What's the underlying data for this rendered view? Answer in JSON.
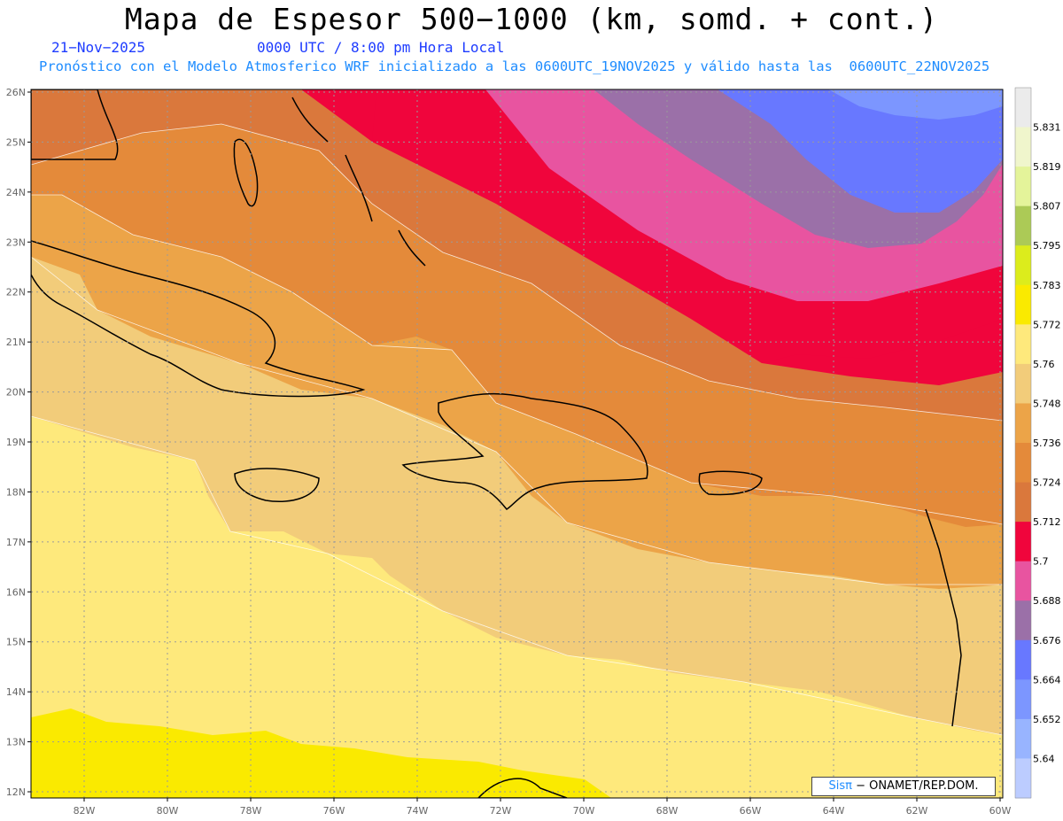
{
  "header": {
    "title": "Mapa de Espesor 500−1000 (km, somd. + cont.)",
    "date": "21−Nov−2025",
    "time": "0000 UTC / 8:00 pm Hora Local",
    "forecast": "Pronóstico con el Modelo Atmosferico WRF inicializado a las 0600UTC_19NOV2025 y válido hasta las  0600UTC_22NOV2025"
  },
  "map": {
    "lat_labels": [
      "26N",
      "25N",
      "24N",
      "23N",
      "22N",
      "21N",
      "20N",
      "19N",
      "18N",
      "17N",
      "16N",
      "15N",
      "14N",
      "13N",
      "12N"
    ],
    "lon_labels": [
      "82W",
      "80W",
      "78W",
      "76W",
      "74W",
      "72W",
      "70W",
      "68W",
      "66W",
      "64W",
      "62W",
      "60W"
    ],
    "colors": {
      "c5640": "#bcccff",
      "c5652": "#98b4ff",
      "c5664": "#7c96ff",
      "c5676": "#6878ff",
      "c5688": "#9b70a8",
      "c5700": "#e854a0",
      "c5712": "#f0053c",
      "c5724": "#da783c",
      "c5736": "#e48a3a",
      "c5748": "#eca448",
      "c5760": "#f2cc7a",
      "c5772": "#fee97c",
      "c5783": "#faea00",
      "c5795": "#dcec1c",
      "c5807": "#acca56",
      "c5819": "#e4f49a",
      "c5831": "#f0f6cc",
      "ctop": "#ebebeb"
    }
  },
  "colorbar": {
    "labels": [
      "5.831",
      "5.819",
      "5.807",
      "5.795",
      "5.783",
      "5.772",
      "5.76",
      "5.748",
      "5.736",
      "5.724",
      "5.712",
      "5.7",
      "5.688",
      "5.676",
      "5.664",
      "5.652",
      "5.64"
    ],
    "colors": [
      "#ebebeb",
      "#f0f6cc",
      "#e4f49a",
      "#acca56",
      "#dcec1c",
      "#faea00",
      "#fee97c",
      "#f2cc7a",
      "#eca448",
      "#e48a3a",
      "#da783c",
      "#f0053c",
      "#e854a0",
      "#9b70a8",
      "#6878ff",
      "#7c96ff",
      "#98b4ff",
      "#bcccff"
    ]
  },
  "credit": {
    "sis": "Sisπ",
    "rest": " − ONAMET/REP.DOM."
  }
}
